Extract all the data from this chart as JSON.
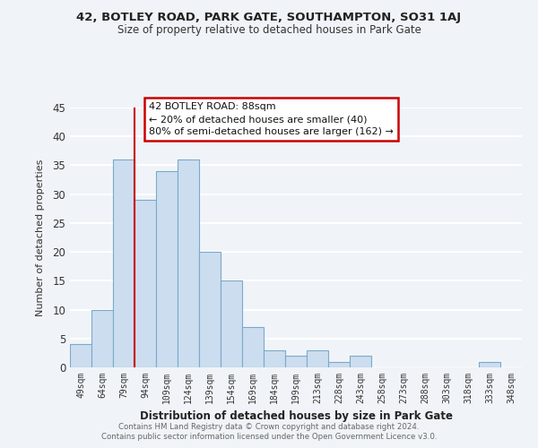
{
  "title": "42, BOTLEY ROAD, PARK GATE, SOUTHAMPTON, SO31 1AJ",
  "subtitle": "Size of property relative to detached houses in Park Gate",
  "xlabel": "Distribution of detached houses by size in Park Gate",
  "ylabel": "Number of detached properties",
  "bar_labels": [
    "49sqm",
    "64sqm",
    "79sqm",
    "94sqm",
    "109sqm",
    "124sqm",
    "139sqm",
    "154sqm",
    "169sqm",
    "184sqm",
    "199sqm",
    "213sqm",
    "228sqm",
    "243sqm",
    "258sqm",
    "273sqm",
    "288sqm",
    "303sqm",
    "318sqm",
    "333sqm",
    "348sqm"
  ],
  "bar_values": [
    4,
    10,
    36,
    29,
    34,
    36,
    20,
    15,
    7,
    3,
    2,
    3,
    1,
    2,
    0,
    0,
    0,
    0,
    0,
    1,
    0
  ],
  "bar_color": "#ccddf0",
  "bar_edge_color": "#7aaac8",
  "ylim": [
    0,
    45
  ],
  "yticks": [
    0,
    5,
    10,
    15,
    20,
    25,
    30,
    35,
    40,
    45
  ],
  "vline_x_index": 2,
  "annotation_title": "42 BOTLEY ROAD: 88sqm",
  "annotation_line1": "← 20% of detached houses are smaller (40)",
  "annotation_line2": "80% of semi-detached houses are larger (162) →",
  "annotation_box_color": "#ffffff",
  "annotation_box_edge": "#cc0000",
  "vline_color": "#cc0000",
  "footer1": "Contains HM Land Registry data © Crown copyright and database right 2024.",
  "footer2": "Contains public sector information licensed under the Open Government Licence v3.0.",
  "background_color": "#f0f4f8",
  "grid_color": "#ffffff",
  "title_fontsize": 9.5,
  "subtitle_fontsize": 8.5
}
